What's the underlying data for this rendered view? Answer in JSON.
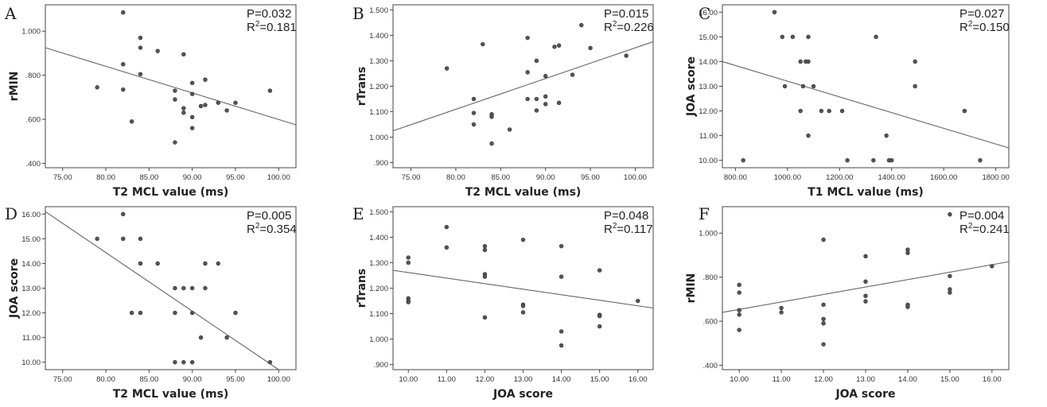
{
  "chart_data": [
    {
      "letter": "A",
      "type": "scatter",
      "xlabel": "T2 MCL value (ms)",
      "ylabel": "rMIN",
      "stat_p": "P=0.032",
      "stat_r2_prefix": "R",
      "stat_r2_value": "=0.181",
      "xlim": [
        73,
        102
      ],
      "ylim": [
        0.38,
        1.12
      ],
      "xticks": [
        75,
        80,
        85,
        90,
        95,
        100
      ],
      "xtick_labels": [
        "75.00",
        "80.00",
        "85.00",
        "90.00",
        "95.00",
        "100.00"
      ],
      "yticks": [
        0.4,
        0.6,
        0.8,
        1.0
      ],
      "ytick_labels": [
        ".400",
        ".600",
        ".800",
        "1.000"
      ],
      "fit": {
        "x1": 73,
        "y1": 0.925,
        "x2": 102,
        "y2": 0.575
      },
      "points": [
        [
          79,
          0.745
        ],
        [
          82,
          1.085
        ],
        [
          82,
          0.85
        ],
        [
          82,
          0.735
        ],
        [
          83,
          0.59
        ],
        [
          84,
          0.97
        ],
        [
          84,
          0.925
        ],
        [
          84,
          0.805
        ],
        [
          86,
          0.91
        ],
        [
          88,
          0.73
        ],
        [
          88,
          0.69
        ],
        [
          88,
          0.495
        ],
        [
          89,
          0.895
        ],
        [
          89,
          0.65
        ],
        [
          89,
          0.63
        ],
        [
          90,
          0.765
        ],
        [
          90,
          0.715
        ],
        [
          90,
          0.61
        ],
        [
          90,
          0.56
        ],
        [
          91,
          0.66
        ],
        [
          91.5,
          0.78
        ],
        [
          91.5,
          0.665
        ],
        [
          93,
          0.675
        ],
        [
          94,
          0.64
        ],
        [
          95,
          0.675
        ],
        [
          99,
          0.73
        ]
      ]
    },
    {
      "letter": "B",
      "type": "scatter",
      "xlabel": "T2 MCL value (ms)",
      "ylabel": "rTrans",
      "stat_p": "P=0.015",
      "stat_r2_prefix": "R",
      "stat_r2_value": "=0.226",
      "xlim": [
        73,
        102
      ],
      "ylim": [
        0.88,
        1.52
      ],
      "xticks": [
        75,
        80,
        85,
        90,
        95,
        100
      ],
      "xtick_labels": [
        "75.00",
        "80.00",
        "85.00",
        "90.00",
        "95.00",
        "100.00"
      ],
      "yticks": [
        0.9,
        1.0,
        1.1,
        1.2,
        1.3,
        1.4,
        1.5
      ],
      "ytick_labels": [
        ".900",
        "1.000",
        "1.100",
        "1.200",
        "1.300",
        "1.400",
        "1.500"
      ],
      "fit": {
        "x1": 73,
        "y1": 1.025,
        "x2": 102,
        "y2": 1.375
      },
      "points": [
        [
          79,
          1.27
        ],
        [
          82,
          1.15
        ],
        [
          82,
          1.095
        ],
        [
          82,
          1.05
        ],
        [
          83,
          1.365
        ],
        [
          84,
          1.09
        ],
        [
          84,
          1.08
        ],
        [
          84,
          0.975
        ],
        [
          86,
          1.03
        ],
        [
          88,
          1.39
        ],
        [
          88,
          1.255
        ],
        [
          88,
          1.15
        ],
        [
          89,
          1.3
        ],
        [
          89,
          1.15
        ],
        [
          89,
          1.105
        ],
        [
          90,
          1.24
        ],
        [
          90,
          1.16
        ],
        [
          90,
          1.13
        ],
        [
          91,
          1.355
        ],
        [
          91.5,
          1.36
        ],
        [
          91.5,
          1.135
        ],
        [
          93,
          1.245
        ],
        [
          94,
          1.44
        ],
        [
          95,
          1.35
        ],
        [
          99,
          1.32
        ]
      ]
    },
    {
      "letter": "C",
      "type": "scatter",
      "xlabel": "T1 MCL value (ms)",
      "ylabel": "JOA score",
      "stat_p": "P=0.027",
      "stat_r2_prefix": "R",
      "stat_r2_value": "=0.150",
      "xlim": [
        750,
        1850
      ],
      "ylim": [
        9.7,
        16.3
      ],
      "xticks": [
        800,
        1000,
        1200,
        1400,
        1600,
        1800
      ],
      "xtick_labels": [
        "800.00",
        "1000.00",
        "1200.00",
        "1400.00",
        "1600.00",
        "1800.00"
      ],
      "yticks": [
        10,
        11,
        12,
        13,
        14,
        15,
        16
      ],
      "ytick_labels": [
        "10.00",
        "11.00",
        "12.00",
        "13.00",
        "14.00",
        "15.00",
        "16.00"
      ],
      "fit": {
        "x1": 750,
        "y1": 14.0,
        "x2": 1850,
        "y2": 10.5
      },
      "points": [
        [
          830,
          10
        ],
        [
          950,
          16
        ],
        [
          980,
          15
        ],
        [
          990,
          13
        ],
        [
          1020,
          15
        ],
        [
          1050,
          14
        ],
        [
          1050,
          12
        ],
        [
          1060,
          13
        ],
        [
          1070,
          14
        ],
        [
          1080,
          15
        ],
        [
          1080,
          14
        ],
        [
          1080,
          11
        ],
        [
          1100,
          13
        ],
        [
          1130,
          12
        ],
        [
          1160,
          12
        ],
        [
          1210,
          12
        ],
        [
          1230,
          10
        ],
        [
          1330,
          10
        ],
        [
          1340,
          15
        ],
        [
          1380,
          11
        ],
        [
          1390,
          10
        ],
        [
          1400,
          10
        ],
        [
          1490,
          14
        ],
        [
          1490,
          13
        ],
        [
          1680,
          12
        ],
        [
          1740,
          10
        ]
      ]
    },
    {
      "letter": "D",
      "type": "scatter",
      "xlabel": "T2 MCL value (ms)",
      "ylabel": "JOA score",
      "stat_p": "P=0.005",
      "stat_r2_prefix": "R",
      "stat_r2_value": "=0.354",
      "xlim": [
        73,
        102
      ],
      "ylim": [
        9.7,
        16.3
      ],
      "xticks": [
        75,
        80,
        85,
        90,
        95,
        100
      ],
      "xtick_labels": [
        "75.00",
        "80.00",
        "85.00",
        "90.00",
        "95.00",
        "100.00"
      ],
      "yticks": [
        10,
        11,
        12,
        13,
        14,
        15,
        16
      ],
      "ytick_labels": [
        "10.00",
        "11.00",
        "12.00",
        "13.00",
        "14.00",
        "15.00",
        "16.00"
      ],
      "fit": {
        "x1": 73,
        "y1": 16.1,
        "x2": 100,
        "y2": 9.7
      },
      "points": [
        [
          79,
          15
        ],
        [
          82,
          16
        ],
        [
          82,
          15
        ],
        [
          83,
          12
        ],
        [
          84,
          15
        ],
        [
          84,
          14
        ],
        [
          84,
          12
        ],
        [
          86,
          14
        ],
        [
          88,
          13
        ],
        [
          88,
          12
        ],
        [
          88,
          10
        ],
        [
          89,
          13
        ],
        [
          89,
          10
        ],
        [
          90,
          13
        ],
        [
          90,
          12
        ],
        [
          90,
          10
        ],
        [
          91,
          11
        ],
        [
          91.5,
          14
        ],
        [
          91.5,
          13
        ],
        [
          93,
          14
        ],
        [
          94,
          11
        ],
        [
          95,
          12
        ],
        [
          99,
          10
        ]
      ]
    },
    {
      "letter": "E",
      "type": "scatter",
      "xlabel": "JOA score",
      "ylabel": "rTrans",
      "stat_p": "P=0.048",
      "stat_r2_prefix": "R",
      "stat_r2_value": "=0.117",
      "xlim": [
        9.6,
        16.4
      ],
      "ylim": [
        0.88,
        1.52
      ],
      "xticks": [
        10,
        11,
        12,
        13,
        14,
        15,
        16
      ],
      "xtick_labels": [
        "10.00",
        "11.00",
        "12.00",
        "13.00",
        "14.00",
        "15.00",
        "16.00"
      ],
      "yticks": [
        0.9,
        1.0,
        1.1,
        1.2,
        1.3,
        1.4,
        1.5
      ],
      "ytick_labels": [
        ".900",
        "1.000",
        "1.100",
        "1.200",
        "1.300",
        "1.400",
        "1.500"
      ],
      "fit": {
        "x1": 9.6,
        "y1": 1.27,
        "x2": 16.4,
        "y2": 1.122
      },
      "points": [
        [
          10,
          1.32
        ],
        [
          10,
          1.3
        ],
        [
          10,
          1.16
        ],
        [
          10,
          1.15
        ],
        [
          10,
          1.145
        ],
        [
          11,
          1.44
        ],
        [
          11,
          1.36
        ],
        [
          12,
          1.365
        ],
        [
          12,
          1.35
        ],
        [
          12,
          1.255
        ],
        [
          12,
          1.245
        ],
        [
          12,
          1.085
        ],
        [
          13,
          1.39
        ],
        [
          13,
          1.135
        ],
        [
          13,
          1.13
        ],
        [
          13,
          1.105
        ],
        [
          14,
          1.365
        ],
        [
          14,
          1.245
        ],
        [
          14,
          1.03
        ],
        [
          14,
          0.975
        ],
        [
          15,
          1.27
        ],
        [
          15,
          1.095
        ],
        [
          15,
          1.09
        ],
        [
          15,
          1.05
        ],
        [
          16,
          1.15
        ]
      ]
    },
    {
      "letter": "F",
      "type": "scatter",
      "xlabel": "JOA score",
      "ylabel": "rMIN",
      "stat_p": "P=0.004",
      "stat_r2_prefix": "R",
      "stat_r2_value": "=0.241",
      "xlim": [
        9.6,
        16.4
      ],
      "ylim": [
        0.38,
        1.12
      ],
      "xticks": [
        10,
        11,
        12,
        13,
        14,
        15,
        16
      ],
      "xtick_labels": [
        "10.00",
        "11.00",
        "12.00",
        "13.00",
        "14.00",
        "15.00",
        "16.00"
      ],
      "yticks": [
        0.4,
        0.6,
        0.8,
        1.0
      ],
      "ytick_labels": [
        ".400",
        ".600",
        ".800",
        "1.000"
      ],
      "fit": {
        "x1": 9.6,
        "y1": 0.64,
        "x2": 16.4,
        "y2": 0.87
      },
      "points": [
        [
          10,
          0.765
        ],
        [
          10,
          0.73
        ],
        [
          10,
          0.65
        ],
        [
          10,
          0.63
        ],
        [
          10,
          0.56
        ],
        [
          11,
          0.66
        ],
        [
          11,
          0.64
        ],
        [
          12,
          0.97
        ],
        [
          12,
          0.675
        ],
        [
          12,
          0.61
        ],
        [
          12,
          0.59
        ],
        [
          12,
          0.495
        ],
        [
          13,
          0.895
        ],
        [
          13,
          0.78
        ],
        [
          13,
          0.715
        ],
        [
          13,
          0.69
        ],
        [
          14,
          0.925
        ],
        [
          14,
          0.91
        ],
        [
          14,
          0.675
        ],
        [
          14,
          0.665
        ],
        [
          15,
          1.085
        ],
        [
          15,
          0.805
        ],
        [
          15,
          0.745
        ],
        [
          15,
          0.73
        ],
        [
          16,
          0.85
        ]
      ]
    }
  ]
}
